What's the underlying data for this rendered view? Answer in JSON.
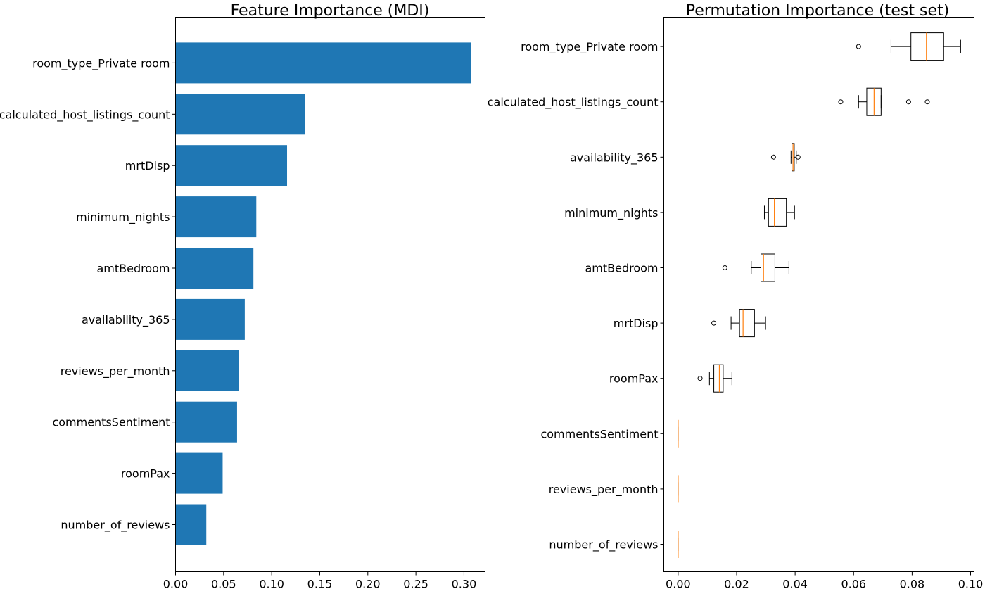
{
  "chart_data": [
    {
      "type": "bar",
      "orientation": "horizontal",
      "title": "Feature Importance (MDI)",
      "xlabel": "",
      "ylabel": "",
      "categories": [
        "number_of_reviews",
        "roomPax",
        "commentsSentiment",
        "reviews_per_month",
        "availability_365",
        "amtBedroom",
        "minimum_nights",
        "mrtDisp",
        "calculated_host_listings_count",
        "room_type_Private room"
      ],
      "values": [
        0.032,
        0.049,
        0.064,
        0.066,
        0.072,
        0.081,
        0.084,
        0.116,
        0.135,
        0.307
      ],
      "xlim": [
        0,
        0.322
      ],
      "xticks": [
        0.0,
        0.05,
        0.1,
        0.15,
        0.2,
        0.25,
        0.3
      ],
      "xtick_labels": [
        "0.00",
        "0.05",
        "0.10",
        "0.15",
        "0.20",
        "0.25",
        "0.30"
      ],
      "bar_color": "#1f77b4",
      "grid": false
    },
    {
      "type": "boxplot",
      "orientation": "horizontal",
      "title": "Permutation Importance (test set)",
      "xlabel": "",
      "ylabel": "",
      "categories": [
        "number_of_reviews",
        "reviews_per_month",
        "commentsSentiment",
        "roomPax",
        "mrtDisp",
        "amtBedroom",
        "minimum_nights",
        "availability_365",
        "calculated_host_listings_count",
        "room_type_Private room"
      ],
      "boxes": [
        {
          "whisker_low": 0.0,
          "q1": 0.0,
          "median": 0.0,
          "q3": 0.0,
          "whisker_high": 0.0,
          "outliers": []
        },
        {
          "whisker_low": 0.0,
          "q1": 0.0,
          "median": 0.0,
          "q3": 0.0,
          "whisker_high": 0.0,
          "outliers": []
        },
        {
          "whisker_low": 0.0,
          "q1": 0.0,
          "median": 0.0,
          "q3": 0.0,
          "whisker_high": 0.0,
          "outliers": []
        },
        {
          "whisker_low": 0.0107,
          "q1": 0.0122,
          "median": 0.0141,
          "q3": 0.0154,
          "whisker_high": 0.0184,
          "outliers": [
            0.0075
          ]
        },
        {
          "whisker_low": 0.0181,
          "q1": 0.021,
          "median": 0.0222,
          "q3": 0.0261,
          "whisker_high": 0.0299,
          "outliers": [
            0.0122
          ]
        },
        {
          "whisker_low": 0.025,
          "q1": 0.0283,
          "median": 0.0292,
          "q3": 0.0331,
          "whisker_high": 0.0379,
          "outliers": [
            0.016
          ]
        },
        {
          "whisker_low": 0.0295,
          "q1": 0.0309,
          "median": 0.0329,
          "q3": 0.037,
          "whisker_high": 0.0398,
          "outliers": []
        },
        {
          "whisker_low": 0.0386,
          "q1": 0.0389,
          "median": 0.0393,
          "q3": 0.0397,
          "whisker_high": 0.0404,
          "outliers": [
            0.0326,
            0.041
          ]
        },
        {
          "whisker_low": 0.0617,
          "q1": 0.0645,
          "median": 0.067,
          "q3": 0.0694,
          "whisker_high": 0.0694,
          "outliers": [
            0.0556,
            0.0788,
            0.0852
          ]
        },
        {
          "whisker_low": 0.0728,
          "q1": 0.0796,
          "median": 0.0849,
          "q3": 0.0908,
          "whisker_high": 0.0966,
          "outliers": [
            0.0617
          ]
        }
      ],
      "xlim": [
        -0.0049,
        0.1012
      ],
      "xticks": [
        0.0,
        0.02,
        0.04,
        0.06,
        0.08,
        0.1
      ],
      "xtick_labels": [
        "0.00",
        "0.02",
        "0.04",
        "0.06",
        "0.08",
        "0.10"
      ],
      "box_color": "#000000",
      "median_color": "#ff7f0e",
      "grid": false
    }
  ]
}
